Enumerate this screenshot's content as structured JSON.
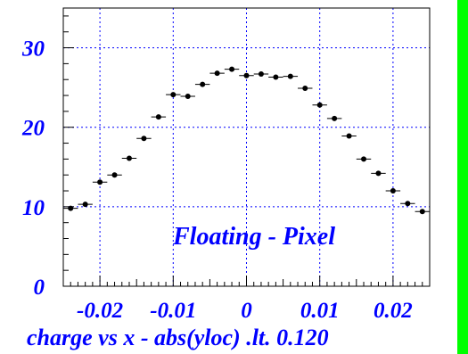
{
  "chart_data": {
    "type": "scatter",
    "title": "",
    "xlabel": "charge vs x - abs(yloc) .lt. 0.120",
    "ylabel": "",
    "annotation": "Floating - Pixel",
    "xlim": [
      -0.025,
      0.025
    ],
    "ylim": [
      0,
      35
    ],
    "x_ticks": [
      -0.02,
      -0.01,
      0,
      0.01,
      0.02
    ],
    "x_tick_labels": [
      "-0.02",
      "-0.01",
      "0",
      "0.01",
      "0.02"
    ],
    "y_ticks": [
      0,
      10,
      20,
      30
    ],
    "y_tick_labels": [
      "0",
      "10",
      "20",
      "30"
    ],
    "grid": true,
    "series": [
      {
        "x": [
          -0.024,
          -0.022,
          -0.02,
          -0.018,
          -0.016,
          -0.014,
          -0.012,
          -0.01,
          -0.008,
          -0.006,
          -0.004,
          -0.002,
          0.0,
          0.002,
          0.004,
          0.006,
          0.008,
          0.01,
          0.012,
          0.014,
          0.016,
          0.018,
          0.02,
          0.022,
          0.024
        ],
        "y": [
          9.8,
          10.3,
          13.1,
          14.0,
          16.1,
          18.6,
          21.3,
          24.1,
          23.9,
          25.4,
          26.8,
          27.3,
          26.5,
          26.7,
          26.3,
          26.4,
          24.9,
          22.8,
          21.1,
          18.9,
          16.0,
          14.2,
          12.0,
          10.4,
          9.4
        ],
        "x_err": 0.001,
        "color": "#000000"
      }
    ],
    "colors": {
      "text": "#0000ff",
      "grid": "#0000ff",
      "frame": "#000000",
      "marker": "#000000",
      "right_strip": "#00ff00"
    }
  }
}
